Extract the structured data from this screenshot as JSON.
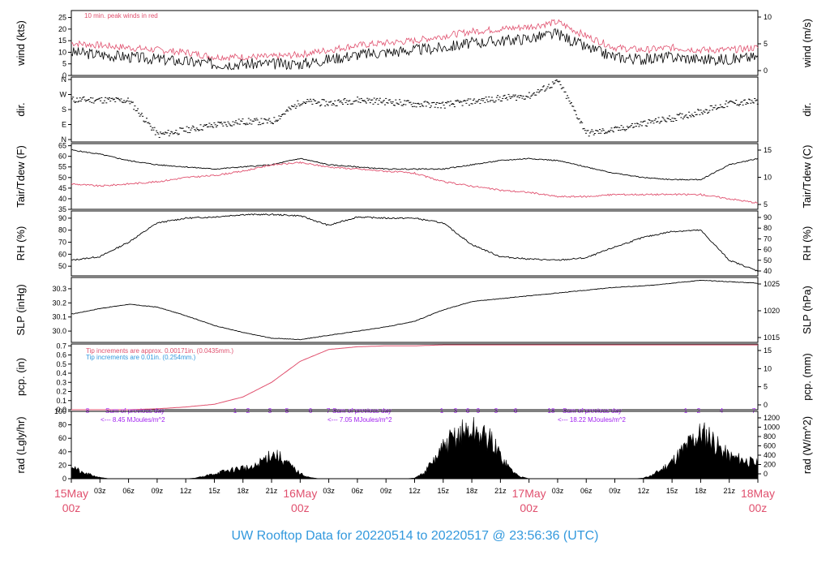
{
  "colors": {
    "black": "#000000",
    "red": "#e0506e",
    "blue": "#3399dd",
    "purple": "#a020f0",
    "title": "#3399dd"
  },
  "page": {
    "title": "UW Rooftop Data for 20220514  to  20220517 @ 23:56:36  (UTC)"
  },
  "time_axis": {
    "hour_ticks": [
      "03z",
      "06z",
      "09z",
      "12z",
      "15z",
      "18z",
      "21z",
      "03z",
      "06z",
      "09z",
      "12z",
      "15z",
      "18z",
      "21z",
      "03z",
      "06z",
      "09z",
      "12z",
      "15z",
      "18z",
      "21z"
    ],
    "day_labels": [
      {
        "date": "15May",
        "hour": "00z"
      },
      {
        "date": "16May",
        "hour": "00z"
      },
      {
        "date": "17May",
        "hour": "00z"
      },
      {
        "date": "18May",
        "hour": "00z"
      }
    ]
  },
  "chart_data": [
    {
      "type": "line",
      "id": "wind",
      "ylabel": "wind (kts)",
      "ylabel_right": "wind (m/s)",
      "ylim": [
        0,
        28
      ],
      "yticks": [
        "0",
        "5",
        "10",
        "15",
        "20",
        "25"
      ],
      "yticks_right": [
        "0",
        "5",
        "10"
      ],
      "annotation": "10 min. peak winds in red",
      "x_hours": [
        0,
        3,
        6,
        9,
        12,
        15,
        18,
        21,
        24,
        27,
        30,
        33,
        36,
        39,
        42,
        45,
        48,
        51,
        54,
        57,
        60,
        63,
        66,
        69,
        72
      ],
      "series": [
        {
          "values": [
            10,
            9,
            8,
            7,
            6,
            5,
            5,
            5,
            5,
            7,
            9,
            10,
            11,
            12,
            14,
            15,
            16,
            18,
            12,
            8,
            7,
            8,
            7,
            7,
            8
          ]
        },
        {
          "values": [
            14,
            13,
            12,
            11,
            10,
            8,
            8,
            8,
            9,
            11,
            13,
            14,
            15,
            17,
            19,
            20,
            21,
            23,
            17,
            12,
            11,
            12,
            11,
            11,
            12
          ]
        }
      ]
    },
    {
      "type": "scatter",
      "id": "dir",
      "ylabel": "dir.",
      "ylabel_right": "dir.",
      "ylim": [
        0,
        360
      ],
      "yticks": [
        "N",
        "E",
        "S",
        "W",
        "N"
      ],
      "x_hours": [
        0,
        3,
        6,
        9,
        12,
        15,
        18,
        21,
        24,
        27,
        30,
        33,
        36,
        39,
        42,
        45,
        48,
        51,
        54,
        57,
        60,
        63,
        66,
        69,
        72
      ],
      "series": [
        {
          "values": [
            240,
            240,
            235,
            30,
            60,
            90,
            110,
            110,
            230,
            220,
            240,
            230,
            215,
            210,
            230,
            250,
            265,
            350,
            40,
            60,
            100,
            130,
            170,
            220,
            230
          ]
        }
      ]
    },
    {
      "type": "line",
      "id": "temp",
      "ylabel": "Tair/Tdew (F)",
      "ylabel_right": "Tair/Tdew (C)",
      "ylim": [
        35,
        66
      ],
      "yticks": [
        "35",
        "40",
        "45",
        "50",
        "55",
        "60",
        "65"
      ],
      "yticks_right": [
        "5",
        "10",
        "15"
      ],
      "x_hours": [
        0,
        3,
        6,
        9,
        12,
        15,
        18,
        21,
        24,
        27,
        30,
        33,
        36,
        39,
        42,
        45,
        48,
        51,
        54,
        57,
        60,
        63,
        66,
        69,
        72
      ],
      "series": [
        {
          "values": [
            63,
            61,
            58,
            56,
            55,
            54,
            55,
            56,
            59,
            56,
            55,
            54,
            54,
            54,
            56,
            58,
            59,
            58,
            55,
            52,
            50,
            49,
            49,
            56,
            59
          ]
        },
        {
          "values": [
            47,
            46,
            47,
            48,
            50,
            51,
            53,
            56,
            57,
            55,
            54,
            53,
            52,
            48,
            46,
            44,
            43,
            41,
            41,
            42,
            42,
            42,
            42,
            40,
            38
          ]
        }
      ]
    },
    {
      "type": "line",
      "id": "rh",
      "ylabel": "RH (%)",
      "ylabel_right": "RH (%)",
      "ylim": [
        42,
        96
      ],
      "yticks": [
        "50",
        "60",
        "70",
        "80",
        "90"
      ],
      "yticks_right": [
        "40",
        "50",
        "60",
        "70",
        "80",
        "90"
      ],
      "x_hours": [
        0,
        3,
        6,
        9,
        12,
        15,
        18,
        21,
        24,
        27,
        30,
        33,
        36,
        39,
        42,
        45,
        48,
        51,
        54,
        57,
        60,
        63,
        66,
        69,
        72
      ],
      "series": [
        {
          "values": [
            55,
            58,
            70,
            86,
            90,
            91,
            93,
            93,
            92,
            84,
            91,
            90,
            90,
            86,
            68,
            58,
            56,
            55,
            57,
            66,
            74,
            79,
            80,
            55,
            46
          ]
        }
      ]
    },
    {
      "type": "line",
      "id": "slp",
      "ylabel": "SLP (inHg)",
      "ylabel_right": "SLP (hPa)",
      "ylim": [
        29.92,
        30.38
      ],
      "yticks": [
        "30.0",
        "30.1",
        "30.2",
        "30.3"
      ],
      "yticks_right": [
        "1015",
        "1020",
        "1025"
      ],
      "x_hours": [
        0,
        3,
        6,
        9,
        12,
        15,
        18,
        21,
        24,
        27,
        30,
        33,
        36,
        39,
        42,
        45,
        48,
        51,
        54,
        57,
        60,
        63,
        66,
        69,
        72
      ],
      "series": [
        {
          "values": [
            30.12,
            30.16,
            30.19,
            30.17,
            30.11,
            30.04,
            29.99,
            29.95,
            29.94,
            29.97,
            30.0,
            30.03,
            30.07,
            30.15,
            30.21,
            30.23,
            30.25,
            30.27,
            30.29,
            30.31,
            30.32,
            30.34,
            30.36,
            30.35,
            30.34
          ]
        }
      ]
    },
    {
      "type": "line",
      "id": "pcp",
      "ylabel": "pcp. (in)",
      "ylabel_right": "pcp. (mm)",
      "ylim": [
        0,
        0.72
      ],
      "yticks": [
        "0.0",
        "0.1",
        "0.2",
        "0.3",
        "0.4",
        "0.5",
        "0.6",
        "0.7"
      ],
      "yticks_right": [
        "0",
        "5",
        "10",
        "15"
      ],
      "annotation_red": "Tip increments are approx. 0.00171in. (0.0435mm.)",
      "annotation_blue": "Tip increments are 0.01in. (0.254mm.)",
      "x_hours": [
        0,
        3,
        6,
        9,
        12,
        15,
        18,
        21,
        24,
        27,
        30,
        33,
        36,
        39,
        42,
        45,
        48,
        51,
        54,
        57,
        60,
        63,
        66,
        69,
        72
      ],
      "series": [
        {
          "values": [
            0,
            0,
            0,
            0.01,
            0.03,
            0.06,
            0.14,
            0.3,
            0.53,
            0.66,
            0.69,
            0.7,
            0.7,
            0.71,
            0.71,
            0.71,
            0.71,
            0.71,
            0.71,
            0.71,
            0.71,
            0.71,
            0.71,
            0.71,
            0.71
          ]
        }
      ]
    },
    {
      "type": "area",
      "id": "rad",
      "ylabel": "rad (Lgly/hr)",
      "ylabel_right": "rad (W/m^2)",
      "ylim": [
        0,
        100
      ],
      "yticks": [
        "0",
        "20",
        "40",
        "60",
        "80",
        "100"
      ],
      "yticks_right": [
        "0",
        "200",
        "400",
        "600",
        "800",
        "1000",
        "1200"
      ],
      "x_hours": [
        0,
        1,
        2,
        3,
        4,
        5,
        6,
        7,
        8,
        9,
        10,
        11,
        12,
        13,
        14,
        15,
        16,
        17,
        18,
        19,
        20,
        21,
        22,
        23,
        24,
        25,
        26,
        27,
        28,
        29,
        30,
        31,
        32,
        33,
        34,
        35,
        36,
        37,
        38,
        39,
        40,
        41,
        42,
        43,
        44,
        45,
        46,
        47,
        48,
        49,
        50,
        51,
        52,
        53,
        54,
        55,
        56,
        57,
        58,
        59,
        60,
        61,
        62,
        63,
        64,
        65,
        66,
        67,
        68,
        69,
        70,
        71,
        72
      ],
      "series": [
        {
          "values": [
            28,
            12,
            8,
            2,
            0,
            0,
            0,
            0,
            0,
            0,
            0,
            0,
            0,
            1,
            5,
            10,
            14,
            18,
            22,
            20,
            35,
            50,
            40,
            25,
            10,
            2,
            0,
            0,
            0,
            0,
            0,
            0,
            0,
            0,
            0,
            0,
            1,
            12,
            35,
            60,
            80,
            90,
            95,
            85,
            75,
            45,
            20,
            4,
            0,
            0,
            0,
            0,
            0,
            0,
            0,
            0,
            0,
            0,
            0,
            0,
            1,
            8,
            20,
            35,
            55,
            75,
            90,
            85,
            60,
            45,
            40,
            35,
            30
          ]
        }
      ],
      "daily_summaries": [
        {
          "text": "Sum of previous day",
          "value": "<--- 8.45 MJoules/m^2"
        },
        {
          "text": "Sum of previous day",
          "value": "<--- 7.05 MJoules/m^2"
        },
        {
          "text": "Sum of previous day",
          "value": "<--- 18.22 MJoules/m^2"
        }
      ],
      "hour_marks": [
        "8",
        "1",
        "2",
        "3",
        "5",
        "6",
        "7",
        "1",
        "3",
        "6",
        "9",
        "3",
        "6",
        "18",
        "1",
        "2",
        "4",
        "7"
      ]
    }
  ]
}
